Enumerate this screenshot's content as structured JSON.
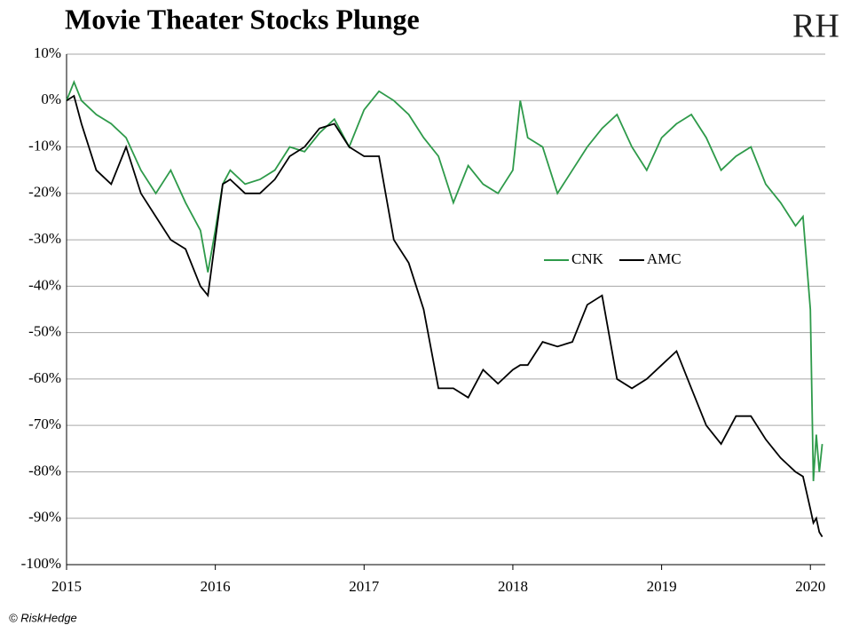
{
  "chart_data": {
    "type": "line",
    "title": "Movie Theater Stocks Plunge",
    "logo": "RH",
    "source": "© RiskHedge",
    "x": [
      2015.0,
      2015.05,
      2015.1,
      2015.2,
      2015.3,
      2015.4,
      2015.5,
      2015.6,
      2015.7,
      2015.8,
      2015.9,
      2015.95,
      2016.0,
      2016.05,
      2016.1,
      2016.2,
      2016.3,
      2016.4,
      2016.5,
      2016.6,
      2016.7,
      2016.8,
      2016.9,
      2017.0,
      2017.1,
      2017.2,
      2017.3,
      2017.4,
      2017.5,
      2017.6,
      2017.7,
      2017.8,
      2017.9,
      2018.0,
      2018.05,
      2018.1,
      2018.2,
      2018.3,
      2018.4,
      2018.5,
      2018.6,
      2018.7,
      2018.8,
      2018.9,
      2019.0,
      2019.1,
      2019.2,
      2019.3,
      2019.4,
      2019.5,
      2019.6,
      2019.7,
      2019.8,
      2019.9,
      2019.95,
      2020.0,
      2020.02,
      2020.04,
      2020.06,
      2020.08
    ],
    "series": [
      {
        "name": "CNK",
        "color": "#2e9a4a",
        "values": [
          0,
          4,
          0,
          -3,
          -5,
          -8,
          -15,
          -20,
          -15,
          -22,
          -28,
          -37,
          -28,
          -18,
          -15,
          -18,
          -17,
          -15,
          -10,
          -11,
          -7,
          -4,
          -10,
          -2,
          2,
          0,
          -3,
          -8,
          -12,
          -22,
          -14,
          -18,
          -20,
          -15,
          0,
          -8,
          -10,
          -20,
          -15,
          -10,
          -6,
          -3,
          -10,
          -15,
          -8,
          -5,
          -3,
          -8,
          -15,
          -12,
          -10,
          -18,
          -22,
          -27,
          -25,
          -45,
          -82,
          -72,
          -80,
          -74
        ]
      },
      {
        "name": "AMC",
        "color": "#000000",
        "values": [
          0,
          1,
          -5,
          -15,
          -18,
          -10,
          -20,
          -25,
          -30,
          -32,
          -40,
          -42,
          -30,
          -18,
          -17,
          -20,
          -20,
          -17,
          -12,
          -10,
          -6,
          -5,
          -10,
          -12,
          -12,
          -30,
          -35,
          -45,
          -62,
          -62,
          -64,
          -58,
          -61,
          -58,
          -57,
          -57,
          -52,
          -53,
          -52,
          -44,
          -42,
          -60,
          -62,
          -60,
          -57,
          -54,
          -62,
          -70,
          -74,
          -68,
          -68,
          -73,
          -77,
          -80,
          -81,
          -88,
          -91,
          -90,
          -93,
          -94
        ]
      }
    ],
    "xlim": [
      2015,
      2020.1
    ],
    "xticks": [
      2015,
      2016,
      2017,
      2018,
      2019,
      2020
    ],
    "ylim": [
      -100,
      10
    ],
    "yticks": [
      {
        "value": 10,
        "label": "10%"
      },
      {
        "value": 0,
        "label": "0%"
      },
      {
        "value": -10,
        "label": "-10%"
      },
      {
        "value": -20,
        "label": "-20%"
      },
      {
        "value": -30,
        "label": "-30%"
      },
      {
        "value": -40,
        "label": "-40%"
      },
      {
        "value": -50,
        "label": "-50%"
      },
      {
        "value": -60,
        "label": "-60%"
      },
      {
        "value": -70,
        "label": "-70%"
      },
      {
        "value": -80,
        "label": "-80%"
      },
      {
        "value": -90,
        "label": "-90%"
      },
      {
        "value": -100,
        "label": "-100%"
      }
    ],
    "grid": true,
    "legend": "center-right"
  }
}
